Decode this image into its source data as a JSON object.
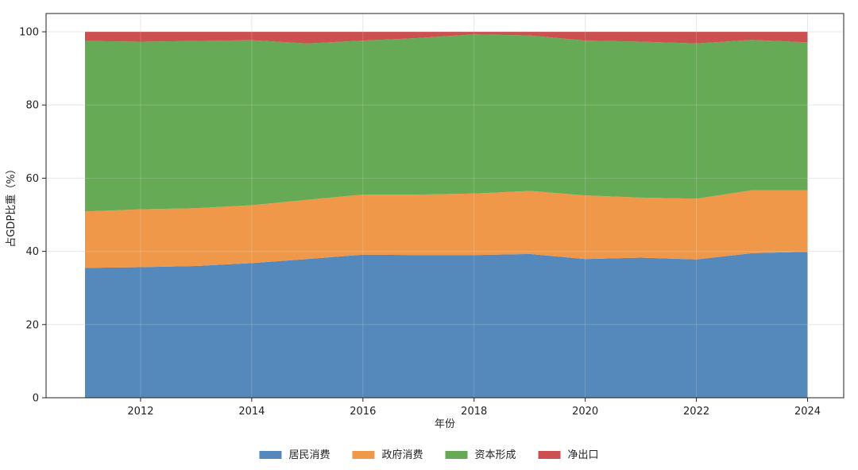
{
  "chart_data": {
    "type": "area",
    "stacked": true,
    "title": "",
    "xlabel": "年份",
    "ylabel": "占GDP比重（%）",
    "xlim": [
      2010.3,
      2024.65
    ],
    "ylim": [
      0,
      105
    ],
    "x_ticks": [
      2012,
      2014,
      2016,
      2018,
      2020,
      2022,
      2024
    ],
    "y_ticks": [
      0,
      20,
      40,
      60,
      80,
      100
    ],
    "grid": true,
    "legend_position": "bottom-center",
    "x": [
      2011,
      2012,
      2013,
      2014,
      2015,
      2016,
      2017,
      2018,
      2019,
      2020,
      2021,
      2022,
      2023,
      2024
    ],
    "series": [
      {
        "name": "居民消费",
        "color": "#5588bb",
        "values": [
          35.5,
          35.7,
          36.0,
          36.8,
          37.9,
          39.1,
          39.0,
          39.0,
          39.3,
          37.9,
          38.3,
          37.8,
          39.5,
          39.9
        ]
      },
      {
        "name": "政府消费",
        "color": "#f0984a",
        "values": [
          15.4,
          15.8,
          15.8,
          15.8,
          16.2,
          16.4,
          16.5,
          16.8,
          17.2,
          17.4,
          16.4,
          16.6,
          17.2,
          16.8
        ]
      },
      {
        "name": "资本形成",
        "color": "#66aa55",
        "values": [
          46.6,
          45.8,
          45.7,
          45.1,
          42.7,
          42.1,
          42.8,
          43.5,
          42.5,
          42.3,
          42.6,
          42.4,
          41.1,
          40.4
        ]
      },
      {
        "name": "净出口",
        "color": "#cc5050",
        "values": [
          2.5,
          2.7,
          2.5,
          2.3,
          3.2,
          2.4,
          1.7,
          0.7,
          1.0,
          2.4,
          2.7,
          3.2,
          2.2,
          2.9
        ]
      }
    ]
  }
}
